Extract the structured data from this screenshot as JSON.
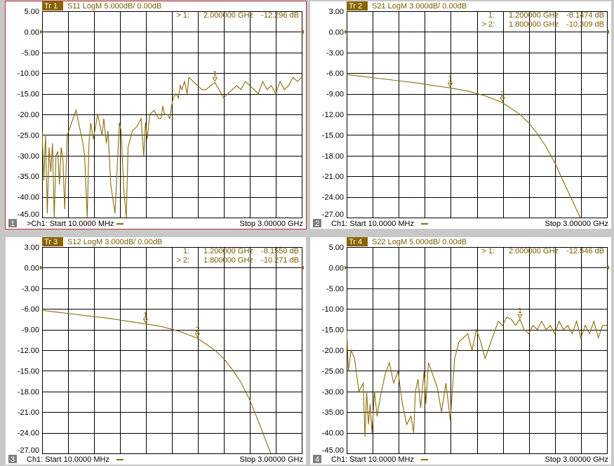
{
  "colors": {
    "trace": "#8a6d0a",
    "header_text": "#7a5c00",
    "active_border": "#b03030",
    "background": "#c8c8c8"
  },
  "panels": [
    {
      "id": "1",
      "active": true,
      "title": {
        "tr_label": "Tr 1",
        "params": "S11 LogM 5.000dB/ 0.00dB"
      },
      "markers": [
        {
          "prefix": "> 1:",
          "freq": "2.000000 GHz",
          "value": "-12.296 dB"
        }
      ],
      "footer": {
        "channel": ">Ch1: Start 10.0000 MHz",
        "stop": "Stop 3.00000 GHz"
      },
      "y_ticks": [
        "5.00",
        "0.00",
        "-5.00",
        "-10.00",
        "-15.00",
        "-20.00",
        "-25.00",
        "-30.00",
        "-35.00",
        "-40.00",
        "-45.00"
      ],
      "ref_level_index": 1,
      "chart_data": {
        "type": "line",
        "xlabel": "",
        "ylabel": "",
        "x_unit": "GHz",
        "y_unit": "dB",
        "xlim": [
          0.01,
          3.0
        ],
        "ylim": [
          -46.5,
          5
        ],
        "x": [
          0.01,
          0.03,
          0.05,
          0.07,
          0.09,
          0.11,
          0.13,
          0.15,
          0.17,
          0.19,
          0.21,
          0.23,
          0.25,
          0.27,
          0.3,
          0.35,
          0.4,
          0.45,
          0.48,
          0.5,
          0.53,
          0.55,
          0.57,
          0.6,
          0.65,
          0.7,
          0.72,
          0.75,
          0.77,
          0.8,
          0.85,
          0.9,
          0.92,
          0.95,
          0.98,
          1.0,
          1.05,
          1.1,
          1.15,
          1.18,
          1.2,
          1.22,
          1.25,
          1.3,
          1.35,
          1.38,
          1.4,
          1.42,
          1.45,
          1.48,
          1.5,
          1.52,
          1.55,
          1.58,
          1.6,
          1.62,
          1.65,
          1.68,
          1.7,
          1.75,
          1.8,
          1.85,
          1.9,
          1.95,
          2.0,
          2.05,
          2.1,
          2.15,
          2.2,
          2.25,
          2.3,
          2.35,
          2.4,
          2.45,
          2.5,
          2.55,
          2.6,
          2.65,
          2.7,
          2.75,
          2.8,
          2.85,
          2.9,
          2.95,
          3.0
        ],
        "values": [
          -24,
          -36,
          -25,
          -44,
          -28,
          -34,
          -27,
          -45,
          -30,
          -29,
          -37,
          -28,
          -31,
          -43,
          -25,
          -22,
          -19,
          -24,
          -27,
          -30,
          -45,
          -27,
          -22,
          -26,
          -20,
          -25,
          -21,
          -27,
          -24,
          -37,
          -44,
          -22,
          -24,
          -38,
          -45,
          -28,
          -24,
          -23,
          -21,
          -30,
          -22,
          -26,
          -20,
          -19,
          -21,
          -21,
          -18,
          -20,
          -20,
          -21,
          -18,
          -16,
          -15,
          -16,
          -13,
          -14,
          -12,
          -15,
          -11,
          -12,
          -13,
          -14,
          -14,
          -13,
          -12.3,
          -14,
          -16,
          -15,
          -14,
          -13,
          -14,
          -12,
          -13,
          -14,
          -15,
          -12,
          -14,
          -13,
          -15,
          -12,
          -14,
          -13,
          -11,
          -12,
          -11
        ]
      },
      "marker_points": [
        {
          "label": "1",
          "x": 2.0,
          "y": -12.296
        }
      ]
    },
    {
      "id": "2",
      "active": false,
      "title": {
        "tr_label": "Tr 2",
        "params": "S21 LogM 3.000dB/ 0.00dB"
      },
      "markers": [
        {
          "prefix": "1:",
          "freq": "1.200000 GHz",
          "value": "-8.1474 dB"
        },
        {
          "prefix": "> 2:",
          "freq": "1.800000 GHz",
          "value": "-10.309 dB"
        }
      ],
      "footer": {
        "channel": "Ch1: Start 10.0000 MHz",
        "stop": "Stop 3.00000 GHz"
      },
      "y_ticks": [
        "3.00",
        "0.00",
        "-3.00",
        "-6.00",
        "-9.00",
        "-12.00",
        "-15.00",
        "-18.00",
        "-21.00",
        "-24.00",
        "-27.00"
      ],
      "ref_level_index": 1,
      "chart_data": {
        "type": "line",
        "xlabel": "",
        "ylabel": "",
        "x_unit": "GHz",
        "y_unit": "dB",
        "xlim": [
          0.01,
          3.0
        ],
        "ylim": [
          -27.6,
          3
        ],
        "x": [
          0.01,
          0.2,
          0.4,
          0.6,
          0.8,
          1.0,
          1.2,
          1.4,
          1.6,
          1.8,
          2.0,
          2.1,
          2.2,
          2.3,
          2.4,
          2.5,
          2.6,
          2.7,
          2.75,
          2.8,
          3.0
        ],
        "values": [
          -6.2,
          -6.5,
          -6.8,
          -7.1,
          -7.4,
          -7.8,
          -8.15,
          -8.6,
          -9.3,
          -10.3,
          -12.0,
          -13.2,
          -14.8,
          -16.7,
          -19.0,
          -21.8,
          -24.5,
          -27.2,
          -27.6,
          -27.6,
          -27.6
        ]
      },
      "marker_points": [
        {
          "label": "1",
          "x": 1.2,
          "y": -8.1474
        },
        {
          "label": "2",
          "x": 1.8,
          "y": -10.309
        }
      ]
    },
    {
      "id": "3",
      "active": false,
      "title": {
        "tr_label": "Tr 3",
        "params": "S12 LogM 3.000dB/ 0.00dB"
      },
      "markers": [
        {
          "prefix": "1:",
          "freq": "1.200000 GHz",
          "value": "-8.1550 dB"
        },
        {
          "prefix": "> 2:",
          "freq": "1.800000 GHz",
          "value": "-10.271 dB"
        }
      ],
      "footer": {
        "channel": "Ch1: Start 10.0000 MHz",
        "stop": "Stop 3.00000 GHz"
      },
      "y_ticks": [
        "3.00",
        "0.00",
        "-3.00",
        "-6.00",
        "-9.00",
        "-12.00",
        "-15.00",
        "-18.00",
        "-21.00",
        "-24.00",
        "-27.00"
      ],
      "ref_level_index": 1,
      "chart_data": {
        "type": "line",
        "xlabel": "",
        "ylabel": "",
        "x_unit": "GHz",
        "y_unit": "dB",
        "xlim": [
          0.01,
          3.0
        ],
        "ylim": [
          -27.6,
          3
        ],
        "x": [
          0.01,
          0.2,
          0.4,
          0.6,
          0.8,
          1.0,
          1.2,
          1.4,
          1.6,
          1.8,
          2.0,
          2.1,
          2.2,
          2.3,
          2.4,
          2.5,
          2.6,
          2.65,
          2.7,
          2.75,
          3.0
        ],
        "values": [
          -6.2,
          -6.5,
          -6.8,
          -7.1,
          -7.4,
          -7.8,
          -8.16,
          -8.6,
          -9.3,
          -10.27,
          -12.0,
          -13.2,
          -14.8,
          -16.7,
          -19.2,
          -22.3,
          -25.6,
          -27.2,
          -27.6,
          -27.6,
          -27.6
        ]
      },
      "marker_points": [
        {
          "label": "1",
          "x": 1.2,
          "y": -8.155
        },
        {
          "label": "2",
          "x": 1.8,
          "y": -10.271
        }
      ]
    },
    {
      "id": "4",
      "active": false,
      "title": {
        "tr_label": "Tr 4",
        "params": "S22 LogM 5.000dB/ 0.00dB"
      },
      "markers": [
        {
          "prefix": "> 1:",
          "freq": "2.000000 GHz",
          "value": "-12.546 dB"
        }
      ],
      "footer": {
        "channel": "Ch1: Start 10.0000 MHz",
        "stop": "Stop 3.00000 GHz"
      },
      "y_ticks": [
        "5.00",
        "0.00",
        "-5.00",
        "-10.00",
        "-15.00",
        "-20.00",
        "-25.00",
        "-30.00",
        "-35.00",
        "-40.00",
        "-45.00"
      ],
      "ref_level_index": 1,
      "chart_data": {
        "type": "line",
        "xlabel": "",
        "ylabel": "",
        "x_unit": "GHz",
        "y_unit": "dB",
        "xlim": [
          0.01,
          3.0
        ],
        "ylim": [
          -46.5,
          5
        ],
        "x": [
          0.01,
          0.03,
          0.06,
          0.1,
          0.15,
          0.2,
          0.22,
          0.24,
          0.26,
          0.28,
          0.3,
          0.33,
          0.36,
          0.4,
          0.45,
          0.5,
          0.55,
          0.6,
          0.65,
          0.7,
          0.75,
          0.78,
          0.8,
          0.83,
          0.86,
          0.9,
          0.92,
          0.95,
          1.0,
          1.05,
          1.1,
          1.15,
          1.2,
          1.25,
          1.3,
          1.35,
          1.4,
          1.45,
          1.5,
          1.55,
          1.6,
          1.65,
          1.7,
          1.75,
          1.8,
          1.85,
          1.9,
          1.95,
          2.0,
          2.05,
          2.1,
          2.15,
          2.2,
          2.25,
          2.3,
          2.35,
          2.4,
          2.45,
          2.5,
          2.55,
          2.6,
          2.65,
          2.7,
          2.75,
          2.8,
          2.85,
          2.9,
          2.95,
          3.0
        ],
        "values": [
          -15,
          -25,
          -20,
          -22,
          -30,
          -28,
          -41,
          -30,
          -38,
          -33,
          -40,
          -30,
          -36,
          -31,
          -26,
          -23,
          -28,
          -25,
          -33,
          -38,
          -36,
          -40,
          -30,
          -27,
          -34,
          -25,
          -33,
          -23,
          -26,
          -29,
          -35,
          -28,
          -37,
          -22,
          -18,
          -17,
          -16,
          -20,
          -15,
          -18,
          -22,
          -19,
          -16,
          -13,
          -14,
          -12,
          -12.5,
          -14,
          -12.5,
          -15,
          -16,
          -14,
          -15,
          -13,
          -15,
          -14,
          -16,
          -13,
          -15,
          -14,
          -16,
          -13,
          -17,
          -14,
          -16,
          -13,
          -17,
          -14,
          -14
        ]
      },
      "marker_points": [
        {
          "label": "1",
          "x": 2.0,
          "y": -12.546
        }
      ]
    }
  ]
}
